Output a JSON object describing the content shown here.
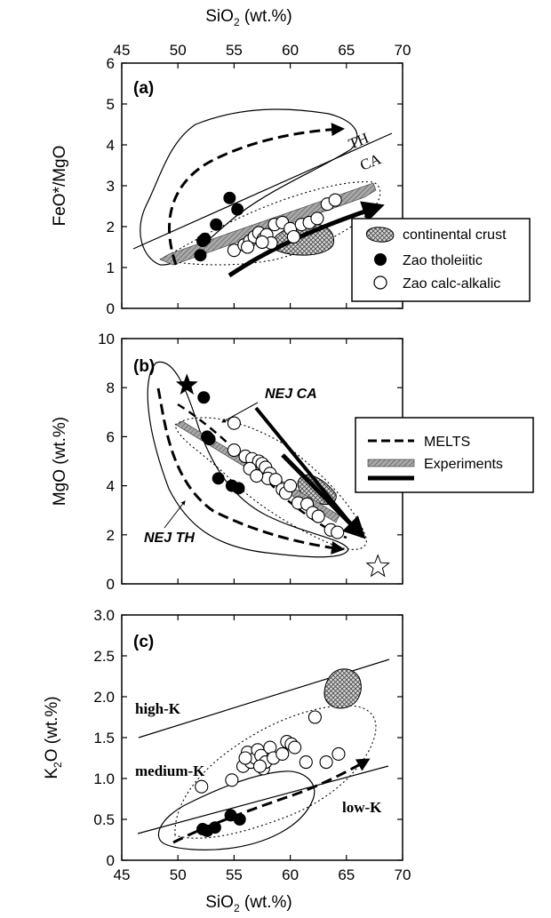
{
  "colors": {
    "axis": "#000000",
    "outline": "#000000",
    "experiments_band": "#8a8a8a",
    "crust_hatch": "#555555",
    "marker_fill_calcalkalic": "#ffffff",
    "marker_fill_tholeiitic": "#000000"
  },
  "labels": {
    "x_top": "SiO",
    "x_top_sub": "2",
    "x_top_unit": " (wt.%)",
    "x_bottom": "SiO",
    "x_bottom_sub": "2",
    "x_bottom_unit": " (wt.%)",
    "a_tag": "(a)",
    "b_tag": "(b)",
    "c_tag": "(c)",
    "a_ylabel": "FeO*/MgO",
    "b_ylabel": "MgO (wt.%)",
    "c_ylabel_k": "K",
    "c_ylabel_sub": "2",
    "c_ylabel_rest": "O (wt.%)",
    "th": "TH",
    "ca": "CA",
    "nej_ca": "NEJ CA",
    "nej_th": "NEJ TH",
    "high_k": "high-K",
    "medium_k": "medium-K",
    "low_k": "low-K"
  },
  "legend_a": {
    "crust": "continental crust",
    "tholeiitic": "Zao tholeiitic",
    "calcalkalic": "Zao calc-alkalic"
  },
  "legend_b": {
    "melts": "MELTS",
    "experiments": "Experiments"
  },
  "chart_data": [
    {
      "type": "scatter",
      "panel": "a",
      "xlabel": "SiO2 (wt.%)",
      "ylabel": "FeO*/MgO",
      "xlim": [
        45,
        70
      ],
      "ylim": [
        0,
        6
      ],
      "xticks": [
        "45",
        "50",
        "55",
        "60",
        "65",
        "70"
      ],
      "yticks": [
        "0",
        "1",
        "2",
        "3",
        "4",
        "5",
        "6"
      ],
      "series": [
        {
          "name": "Zao tholeiitic",
          "points": [
            [
              52.2,
              1.65
            ],
            [
              52.4,
              1.7
            ],
            [
              53.4,
              2.05
            ],
            [
              54.6,
              2.7
            ],
            [
              55.3,
              2.42
            ],
            [
              52.0,
              1.3
            ]
          ]
        },
        {
          "name": "Zao calc-alkalic",
          "points": [
            [
              55.0,
              1.42
            ],
            [
              55.9,
              1.55
            ],
            [
              56.4,
              1.65
            ],
            [
              56.8,
              1.75
            ],
            [
              57.2,
              1.85
            ],
            [
              57.6,
              1.7
            ],
            [
              57.9,
              1.8
            ],
            [
              58.3,
              1.6
            ],
            [
              58.6,
              2.05
            ],
            [
              59.3,
              2.1
            ],
            [
              60.0,
              1.95
            ],
            [
              60.3,
              1.75
            ],
            [
              61.0,
              2.05
            ],
            [
              61.7,
              2.1
            ],
            [
              62.4,
              2.2
            ],
            [
              63.3,
              2.55
            ],
            [
              64.0,
              2.65
            ],
            [
              56.2,
              1.5
            ],
            [
              57.5,
              1.62
            ]
          ]
        }
      ]
    },
    {
      "type": "scatter",
      "panel": "b",
      "xlabel": "SiO2 (wt.%)",
      "ylabel": "MgO (wt.%)",
      "xlim": [
        45,
        70
      ],
      "ylim": [
        0,
        10
      ],
      "xticks": [
        "45",
        "50",
        "55",
        "60",
        "65",
        "70"
      ],
      "yticks": [
        "0",
        "2",
        "4",
        "6",
        "8",
        "10"
      ],
      "series": [
        {
          "name": "Zao tholeiitic",
          "points": [
            [
              52.3,
              7.6
            ],
            [
              52.6,
              6.0
            ],
            [
              52.8,
              5.9
            ],
            [
              53.6,
              4.3
            ],
            [
              54.8,
              4.0
            ],
            [
              55.4,
              3.9
            ]
          ]
        },
        {
          "name": "Zao calc-alkalic",
          "points": [
            [
              55.0,
              6.55
            ],
            [
              55.0,
              5.45
            ],
            [
              56.0,
              5.2
            ],
            [
              56.6,
              5.1
            ],
            [
              57.2,
              5.0
            ],
            [
              57.5,
              4.9
            ],
            [
              57.8,
              4.75
            ],
            [
              58.2,
              4.5
            ],
            [
              58.0,
              4.3
            ],
            [
              58.7,
              4.25
            ],
            [
              59.3,
              3.85
            ],
            [
              59.6,
              3.7
            ],
            [
              60.0,
              4.0
            ],
            [
              60.7,
              3.3
            ],
            [
              61.5,
              3.25
            ],
            [
              62.0,
              2.9
            ],
            [
              62.5,
              2.75
            ],
            [
              63.6,
              2.2
            ],
            [
              64.2,
              2.1
            ],
            [
              56.4,
              4.7
            ],
            [
              57.0,
              4.4
            ]
          ]
        },
        {
          "name": "parental magma star",
          "points": [
            [
              50.8,
              8.1
            ]
          ]
        },
        {
          "name": "open star",
          "points": [
            [
              67.8,
              0.7
            ]
          ]
        }
      ]
    },
    {
      "type": "scatter",
      "panel": "c",
      "xlabel": "SiO2 (wt.%)",
      "ylabel": "K2O (wt.%)",
      "xlim": [
        45,
        70
      ],
      "ylim": [
        0,
        3
      ],
      "xticks": [
        "45",
        "50",
        "55",
        "60",
        "65",
        "70"
      ],
      "yticks": [
        "0",
        "0.5",
        "1.0",
        "1.5",
        "2.0",
        "2.5",
        "3.0"
      ],
      "series": [
        {
          "name": "Zao tholeiitic",
          "points": [
            [
              52.2,
              0.38
            ],
            [
              52.6,
              0.36
            ],
            [
              53.3,
              0.4
            ],
            [
              54.7,
              0.55
            ],
            [
              55.5,
              0.5
            ]
          ]
        },
        {
          "name": "Zao calc-alkalic",
          "points": [
            [
              52.1,
              0.9
            ],
            [
              54.8,
              0.98
            ],
            [
              55.8,
              1.15
            ],
            [
              56.2,
              1.32
            ],
            [
              56.5,
              1.2
            ],
            [
              56.9,
              1.25
            ],
            [
              57.1,
              1.35
            ],
            [
              57.4,
              1.28
            ],
            [
              57.6,
              1.12
            ],
            [
              57.8,
              1.2
            ],
            [
              58.2,
              1.38
            ],
            [
              58.5,
              1.25
            ],
            [
              59.3,
              1.3
            ],
            [
              59.7,
              1.45
            ],
            [
              60.1,
              1.42
            ],
            [
              60.4,
              1.38
            ],
            [
              61.4,
              1.2
            ],
            [
              62.2,
              1.75
            ],
            [
              63.2,
              1.2
            ],
            [
              64.3,
              1.3
            ],
            [
              56.0,
              1.25
            ],
            [
              57.3,
              1.15
            ]
          ]
        }
      ]
    }
  ]
}
